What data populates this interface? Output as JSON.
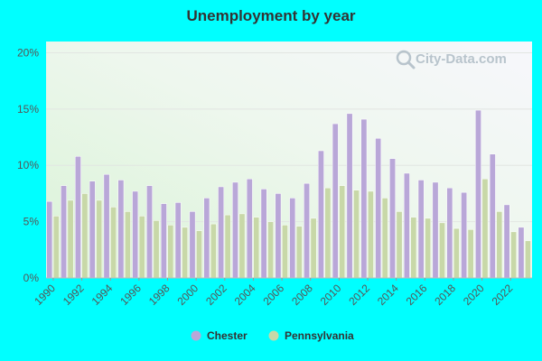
{
  "chart_data": {
    "type": "bar",
    "title": "Unemployment by year",
    "xlabel": "",
    "ylabel": "",
    "ylim": [
      0,
      21
    ],
    "yticks": [
      "0%",
      "5%",
      "10%",
      "15%",
      "20%"
    ],
    "ytick_values": [
      0,
      5,
      10,
      15,
      20
    ],
    "xtick_labels": [
      "1990",
      "1992",
      "1994",
      "1996",
      "1998",
      "2000",
      "2002",
      "2004",
      "2006",
      "2008",
      "2010",
      "2012",
      "2014",
      "2016",
      "2018",
      "2020",
      "2022"
    ],
    "categories": [
      "1990",
      "1991",
      "1992",
      "1993",
      "1994",
      "1995",
      "1996",
      "1997",
      "1998",
      "1999",
      "2000",
      "2001",
      "2002",
      "2003",
      "2004",
      "2005",
      "2006",
      "2007",
      "2008",
      "2009",
      "2010",
      "2011",
      "2012",
      "2013",
      "2014",
      "2015",
      "2016",
      "2017",
      "2018",
      "2019",
      "2020",
      "2021",
      "2022",
      "2023"
    ],
    "series": [
      {
        "name": "Chester",
        "color": "#b9a7d8",
        "values": [
          6.8,
          8.2,
          10.8,
          8.6,
          9.2,
          8.7,
          7.7,
          8.2,
          6.6,
          6.7,
          5.9,
          7.1,
          8.1,
          8.5,
          8.8,
          7.9,
          7.5,
          7.1,
          8.4,
          11.3,
          13.7,
          14.6,
          14.1,
          12.4,
          10.6,
          9.3,
          8.7,
          8.5,
          8.0,
          7.6,
          14.9,
          11.0,
          6.5,
          4.5
        ]
      },
      {
        "name": "Pennsylvania",
        "color": "#c8d8a8",
        "values": [
          5.5,
          6.9,
          7.5,
          6.9,
          6.3,
          5.9,
          5.5,
          5.1,
          4.7,
          4.5,
          4.2,
          4.8,
          5.6,
          5.7,
          5.4,
          5.0,
          4.7,
          4.6,
          5.3,
          8.0,
          8.2,
          7.8,
          7.7,
          7.1,
          5.9,
          5.4,
          5.3,
          4.9,
          4.4,
          4.3,
          8.8,
          5.9,
          4.1,
          3.3
        ]
      }
    ],
    "grid": true,
    "legend_position": "bottom-center"
  },
  "watermark": {
    "text": "City-Data.com",
    "icon": "magnifier-icon"
  }
}
